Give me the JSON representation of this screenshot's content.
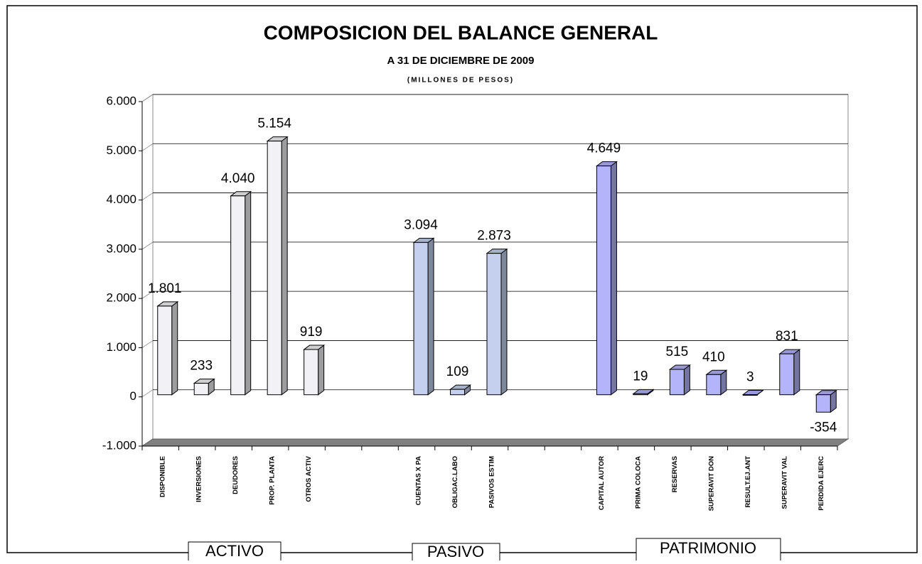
{
  "chart_data": {
    "type": "bar3d",
    "title": "COMPOSICION DEL BALANCE GENERAL",
    "subtitle": "A 31 DE DICIEMBRE DE 2009",
    "unit_note": "(MILLONES DE PESOS)",
    "categories": [
      "DISPONIBLE",
      "INVERSIONES",
      "DEUDORES",
      "PROP. PLANTA",
      "OTROS ACTIV",
      null,
      null,
      "CUENTAS X PA",
      "OBLIGAC.LABO",
      "PASIVOS ESTIM",
      null,
      null,
      "CAPITAL AUTOR",
      "PRIMA COLOCA",
      "RESERVAS",
      "SUPERAVIT DON",
      "RESULT.EJ.ANT",
      "SUPERAVIT VAL",
      "PERDIDA EJERC"
    ],
    "values": [
      1801,
      233,
      4040,
      5154,
      919,
      null,
      null,
      3094,
      109,
      2873,
      null,
      null,
      4649,
      19,
      515,
      410,
      3,
      831,
      -354
    ],
    "value_labels": [
      "1.801",
      "233",
      "4.040",
      "5.154",
      "919",
      null,
      null,
      "3.094",
      "109",
      "2.873",
      null,
      null,
      "4.649",
      "19",
      "515",
      "410",
      "3",
      "831",
      "-354"
    ],
    "bar_colors": [
      "#f2f2f6",
      "#f2f2f6",
      "#f2f2f6",
      "#f2f2f6",
      "#f2f2f6",
      null,
      null,
      "#c4d0ee",
      "#c4d0ee",
      "#c4d0ee",
      null,
      null,
      "#b4b4fa",
      "#b4b4fa",
      "#b4b4fa",
      "#b4b4fa",
      "#b4b4fa",
      "#b4b4fa",
      "#b4b4fa"
    ],
    "ylim": [
      -1000,
      6000
    ],
    "yticks": [
      {
        "value": -1000,
        "label": "-1.000"
      },
      0,
      {
        "value": 1000,
        "label": "1.000"
      },
      {
        "value": 2000,
        "label": "2.000"
      },
      {
        "value": 3000,
        "label": "3.000"
      },
      {
        "value": 4000,
        "label": "4.000"
      },
      {
        "value": 5000,
        "label": "5.000"
      },
      {
        "value": 6000,
        "label": "6.000"
      }
    ],
    "grid": true,
    "groups": [
      "ACTIVO",
      "PASIVO",
      "PATRIMONIO"
    ]
  }
}
